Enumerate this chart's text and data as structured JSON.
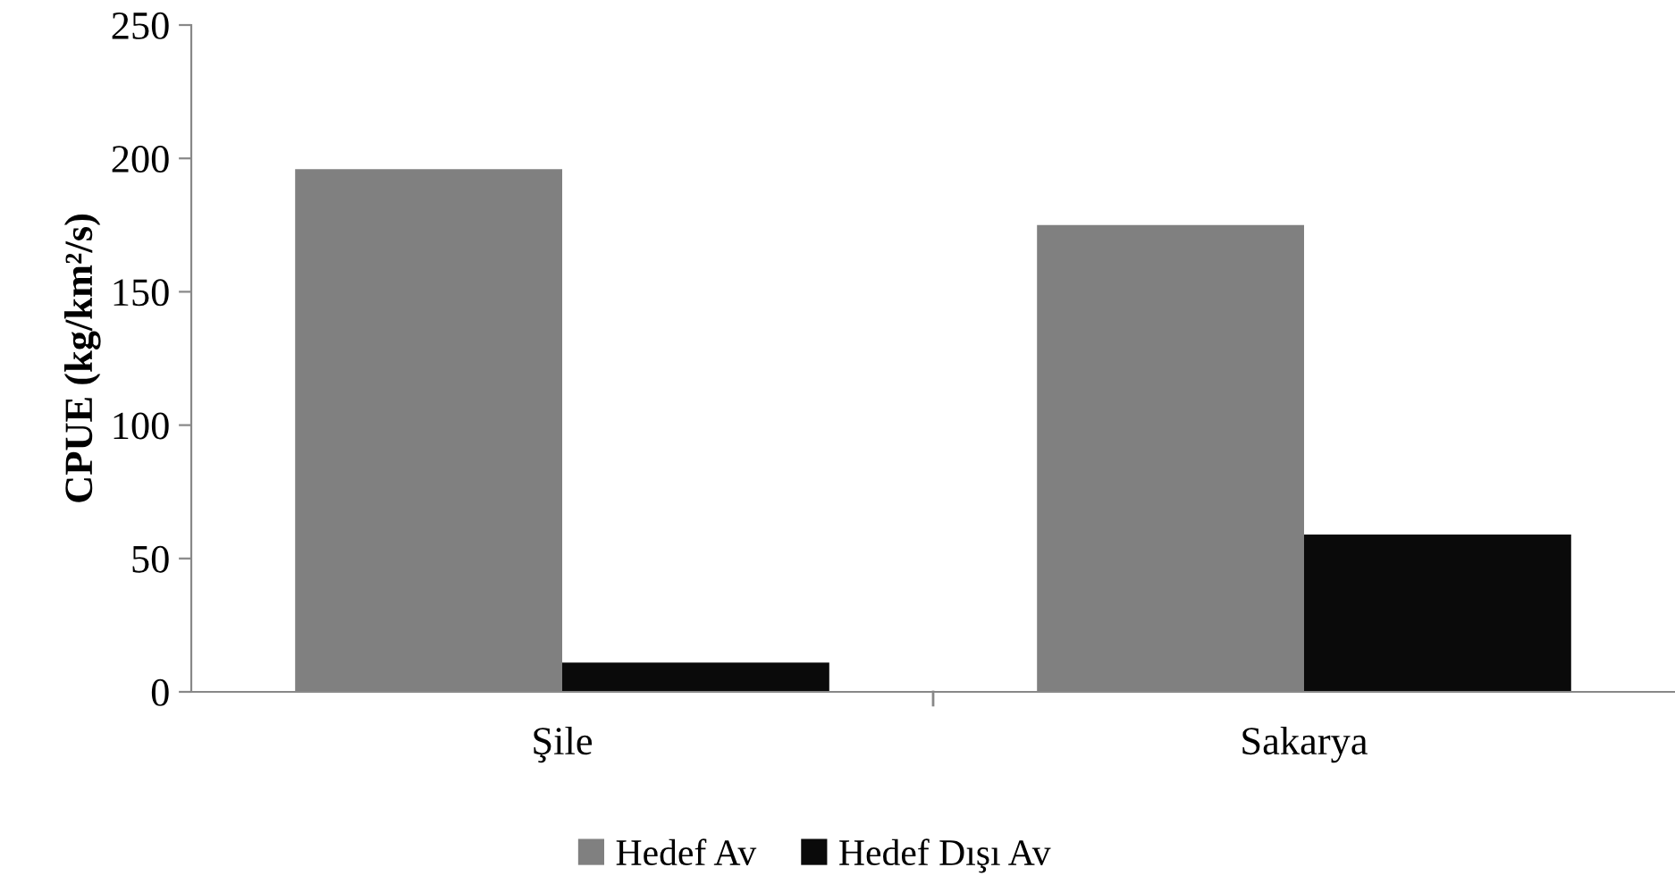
{
  "chart_data": {
    "type": "bar",
    "ylabel": "CPUE (kg/km²/s)",
    "categories": [
      "Şile",
      "Sakarya"
    ],
    "series": [
      {
        "name": "Hedef Av",
        "color": "#808080",
        "values": [
          196,
          175
        ]
      },
      {
        "name": "Hedef Dışı Av",
        "color": "#0a0a0a",
        "values": [
          11,
          59
        ]
      }
    ],
    "ylim": [
      0,
      250
    ],
    "yticks": [
      0,
      50,
      100,
      150,
      200,
      250
    ],
    "grid": false,
    "legend": "bottom"
  }
}
